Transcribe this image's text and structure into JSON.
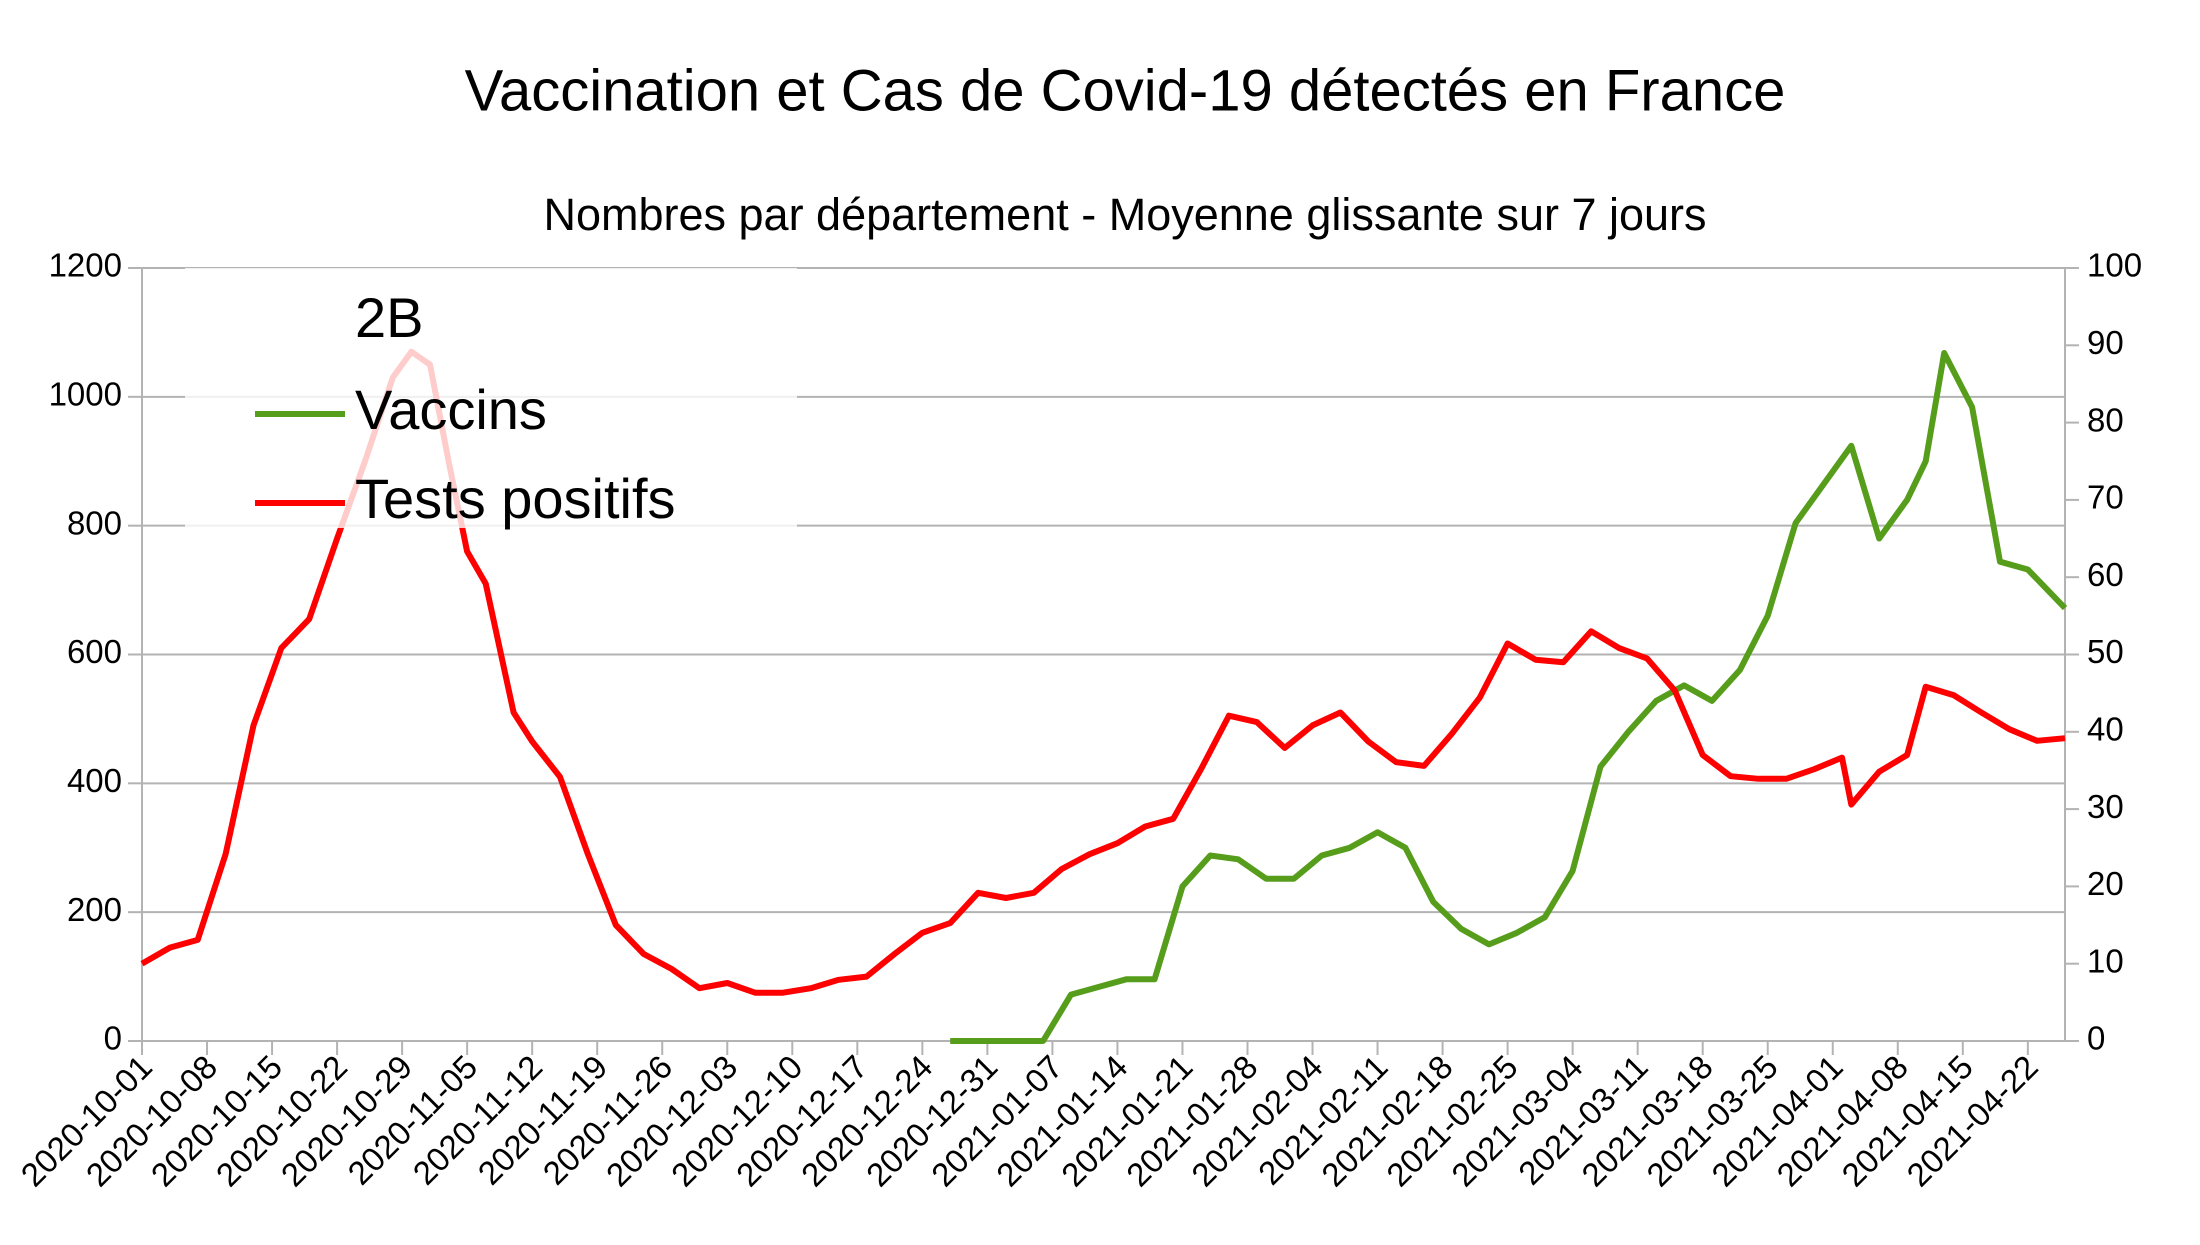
{
  "chart_data": {
    "type": "line",
    "title": "Vaccination et Cas de Covid-19 détectés en France",
    "subtitle": "Nombres par département - Moyenne glissante sur 7 jours",
    "legend_title": "2B",
    "legend": "top-left",
    "grid": true,
    "xlim": [
      "2020-10-01",
      "2021-04-26"
    ],
    "xticks": [
      "2020-10-01",
      "2020-10-08",
      "2020-10-15",
      "2020-10-22",
      "2020-10-29",
      "2020-11-05",
      "2020-11-12",
      "2020-11-19",
      "2020-11-26",
      "2020-12-03",
      "2020-12-10",
      "2020-12-17",
      "2020-12-24",
      "2020-12-31",
      "2021-01-07",
      "2021-01-14",
      "2021-01-21",
      "2021-01-28",
      "2021-02-04",
      "2021-02-11",
      "2021-02-18",
      "2021-02-25",
      "2021-03-04",
      "2021-03-11",
      "2021-03-18",
      "2021-03-25",
      "2021-04-01",
      "2021-04-08",
      "2021-04-15",
      "2021-04-22"
    ],
    "ylim": [
      0,
      1200
    ],
    "yticks": [
      0,
      200,
      400,
      600,
      800,
      1000,
      1200
    ],
    "y2lim": [
      0,
      100
    ],
    "y2ticks": [
      0,
      10,
      20,
      30,
      40,
      50,
      60,
      70,
      80,
      90,
      100
    ],
    "series": [
      {
        "name": "Vaccins",
        "color": "#579d1c",
        "axis": "y2",
        "x": [
          "2020-12-27",
          "2021-01-06",
          "2021-01-09",
          "2021-01-12",
          "2021-01-15",
          "2021-01-18",
          "2021-01-21",
          "2021-01-24",
          "2021-01-27",
          "2021-01-30",
          "2021-02-02",
          "2021-02-05",
          "2021-02-08",
          "2021-02-11",
          "2021-02-14",
          "2021-02-17",
          "2021-02-20",
          "2021-02-23",
          "2021-02-26",
          "2021-03-01",
          "2021-03-04",
          "2021-03-07",
          "2021-03-10",
          "2021-03-13",
          "2021-03-16",
          "2021-03-19",
          "2021-03-22",
          "2021-03-25",
          "2021-03-28",
          "2021-03-31",
          "2021-04-03",
          "2021-04-06",
          "2021-04-09",
          "2021-04-11",
          "2021-04-13",
          "2021-04-16",
          "2021-04-19",
          "2021-04-22",
          "2021-04-26"
        ],
        "values": [
          0,
          0,
          6,
          7,
          8,
          8,
          20,
          24,
          23.5,
          21,
          21,
          24,
          25,
          27,
          25,
          18,
          14.5,
          12.5,
          14,
          16,
          22,
          35.5,
          40,
          44,
          46,
          44,
          48,
          55,
          67,
          72,
          77,
          65,
          70,
          75,
          89,
          82,
          62,
          61,
          56
        ]
      },
      {
        "name": "Tests positifs",
        "color": "#ff0000",
        "x": [
          "2020-10-01",
          "2020-10-04",
          "2020-10-07",
          "2020-10-10",
          "2020-10-13",
          "2020-10-16",
          "2020-10-19",
          "2020-10-22",
          "2020-10-25",
          "2020-10-28",
          "2020-10-30",
          "2020-11-01",
          "2020-11-03",
          "2020-11-05",
          "2020-11-07",
          "2020-11-10",
          "2020-11-12",
          "2020-11-15",
          "2020-11-18",
          "2020-11-21",
          "2020-11-24",
          "2020-11-27",
          "2020-11-30",
          "2020-12-03",
          "2020-12-06",
          "2020-12-09",
          "2020-12-12",
          "2020-12-15",
          "2020-12-18",
          "2020-12-21",
          "2020-12-24",
          "2020-12-27",
          "2020-12-30",
          "2021-01-02",
          "2021-01-05",
          "2021-01-08",
          "2021-01-11",
          "2021-01-14",
          "2021-01-17",
          "2021-01-20",
          "2021-01-23",
          "2021-01-26",
          "2021-01-29",
          "2021-02-01",
          "2021-02-04",
          "2021-02-07",
          "2021-02-10",
          "2021-02-13",
          "2021-02-16",
          "2021-02-19",
          "2021-02-22",
          "2021-02-25",
          "2021-02-28",
          "2021-03-03",
          "2021-03-06",
          "2021-03-09",
          "2021-03-12",
          "2021-03-15",
          "2021-03-18",
          "2021-03-21",
          "2021-03-24",
          "2021-03-27",
          "2021-03-30",
          "2021-04-02",
          "2021-04-03",
          "2021-04-06",
          "2021-04-09",
          "2021-04-11",
          "2021-04-14",
          "2021-04-17",
          "2021-04-20",
          "2021-04-23",
          "2021-04-26"
        ],
        "values": [
          120,
          145,
          157,
          290,
          490,
          610,
          655,
          780,
          900,
          1030,
          1070,
          1050,
          900,
          760,
          710,
          510,
          465,
          410,
          290,
          180,
          135,
          112,
          82,
          90,
          75,
          75,
          82,
          95,
          100,
          135,
          168,
          183,
          230,
          222,
          230,
          267,
          290,
          307,
          333,
          345,
          422,
          505,
          495,
          455,
          490,
          510,
          465,
          433,
          427,
          477,
          533,
          617,
          592,
          588,
          636,
          610,
          594,
          544,
          444,
          411,
          407,
          407,
          422,
          440,
          367,
          418,
          444,
          550,
          537,
          510,
          484,
          466,
          470
        ]
      }
    ]
  }
}
